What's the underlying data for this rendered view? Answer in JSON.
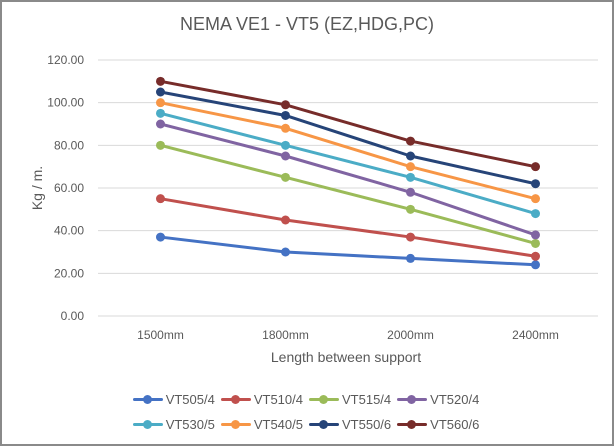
{
  "chart_data": {
    "type": "line",
    "title": "NEMA VE1 - VT5 (EZ,HDG,PC)",
    "xlabel": "Length between support",
    "ylabel": "Kg / m.",
    "categories": [
      "1500mm",
      "1800mm",
      "2000mm",
      "2400mm"
    ],
    "ylim": [
      0,
      120
    ],
    "yticks": [
      "0.00",
      "20.00",
      "40.00",
      "60.00",
      "80.00",
      "100.00",
      "120.00"
    ],
    "grid": true,
    "legend_position": "bottom",
    "series": [
      {
        "name": "VT505/4",
        "color": "#4472c4",
        "values": [
          37,
          30,
          27,
          24
        ]
      },
      {
        "name": "VT510/4",
        "color": "#c0504d",
        "values": [
          55,
          45,
          37,
          28
        ]
      },
      {
        "name": "VT515/4",
        "color": "#9bbb59",
        "values": [
          80,
          65,
          50,
          34
        ]
      },
      {
        "name": "VT520/4",
        "color": "#8064a2",
        "values": [
          90,
          75,
          58,
          38
        ]
      },
      {
        "name": "VT530/5",
        "color": "#4bacc6",
        "values": [
          95,
          80,
          65,
          48
        ]
      },
      {
        "name": "VT540/5",
        "color": "#f79646",
        "values": [
          100,
          88,
          70,
          55
        ]
      },
      {
        "name": "VT550/6",
        "color": "#264478",
        "values": [
          105,
          94,
          75,
          62
        ]
      },
      {
        "name": "VT560/6",
        "color": "#772c2a",
        "values": [
          110,
          99,
          82,
          70
        ]
      }
    ]
  }
}
